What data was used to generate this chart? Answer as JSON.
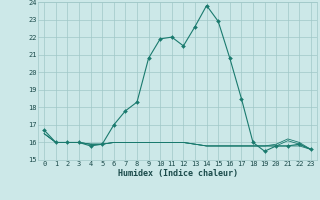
{
  "x_vals": [
    0,
    1,
    2,
    3,
    4,
    5,
    6,
    7,
    8,
    9,
    10,
    11,
    12,
    13,
    14,
    15,
    16,
    17,
    18,
    19,
    20,
    21,
    22,
    23
  ],
  "y_main": [
    16.7,
    16.0,
    16.0,
    16.0,
    15.8,
    15.9,
    17.0,
    17.8,
    18.3,
    20.8,
    21.9,
    22.0,
    21.5,
    22.6,
    23.8,
    22.9,
    20.8,
    18.5,
    16.0,
    15.5,
    15.8,
    15.8,
    15.9,
    15.6
  ],
  "y_flat1": [
    16.5,
    16.0,
    16.0,
    16.0,
    15.9,
    15.9,
    16.0,
    16.0,
    16.0,
    16.0,
    16.0,
    16.0,
    16.0,
    15.9,
    15.8,
    15.8,
    15.8,
    15.8,
    15.8,
    15.8,
    15.8,
    15.8,
    15.8,
    15.6
  ],
  "y_flat2": [
    16.5,
    16.0,
    16.0,
    16.0,
    15.9,
    15.9,
    16.0,
    16.0,
    16.0,
    16.0,
    16.0,
    16.0,
    16.0,
    15.9,
    15.8,
    15.8,
    15.8,
    15.8,
    15.8,
    15.8,
    15.8,
    16.1,
    15.9,
    15.6
  ],
  "y_flat3": [
    16.5,
    16.0,
    16.0,
    16.0,
    15.9,
    15.9,
    16.0,
    16.0,
    16.0,
    16.0,
    16.0,
    16.0,
    16.0,
    15.9,
    15.8,
    15.8,
    15.8,
    15.8,
    15.8,
    15.8,
    15.9,
    16.2,
    16.0,
    15.6
  ],
  "xlabel": "Humidex (Indice chaleur)",
  "ylim": [
    15,
    24
  ],
  "xlim": [
    -0.5,
    23.5
  ],
  "yticks": [
    15,
    16,
    17,
    18,
    19,
    20,
    21,
    22,
    23,
    24
  ],
  "xticks": [
    0,
    1,
    2,
    3,
    4,
    5,
    6,
    7,
    8,
    9,
    10,
    11,
    12,
    13,
    14,
    15,
    16,
    17,
    18,
    19,
    20,
    21,
    22,
    23
  ],
  "line_color": "#1a7a6e",
  "bg_color": "#cce8e8",
  "grid_color": "#a0c8c8",
  "text_color": "#1a4a4a"
}
